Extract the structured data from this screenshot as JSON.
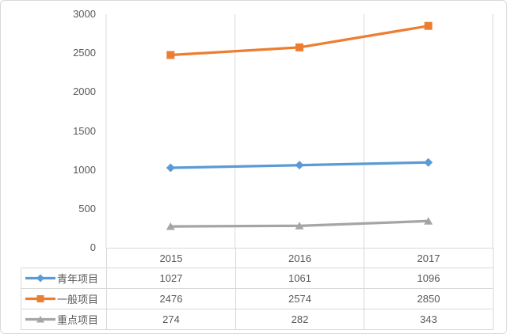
{
  "chart_data": {
    "type": "line",
    "title": "",
    "xlabel": "",
    "ylabel": "",
    "categories": [
      "2015",
      "2016",
      "2017"
    ],
    "series": [
      {
        "name": "青年项目",
        "values": [
          1027,
          1061,
          1096
        ],
        "color": "#5B9BD5",
        "marker": "diamond"
      },
      {
        "name": "一般项目",
        "values": [
          2476,
          2574,
          2850
        ],
        "color": "#ED7D31",
        "marker": "square"
      },
      {
        "name": "重点项目",
        "values": [
          274,
          282,
          343
        ],
        "color": "#A5A5A5",
        "marker": "triangle"
      }
    ],
    "ylim": [
      0,
      3000
    ],
    "yticks": [
      0,
      500,
      1000,
      1500,
      2000,
      2500,
      3000
    ],
    "grid": "vertical-category-boundaries-only",
    "legend_position": "data-table-left-column",
    "has_data_table": true
  },
  "colors": {
    "axis_text": "#595959",
    "gridline": "#d9d9d9",
    "table_border": "#d9d9d9",
    "frame_border": "#d9d9d9",
    "background": "#ffffff"
  }
}
